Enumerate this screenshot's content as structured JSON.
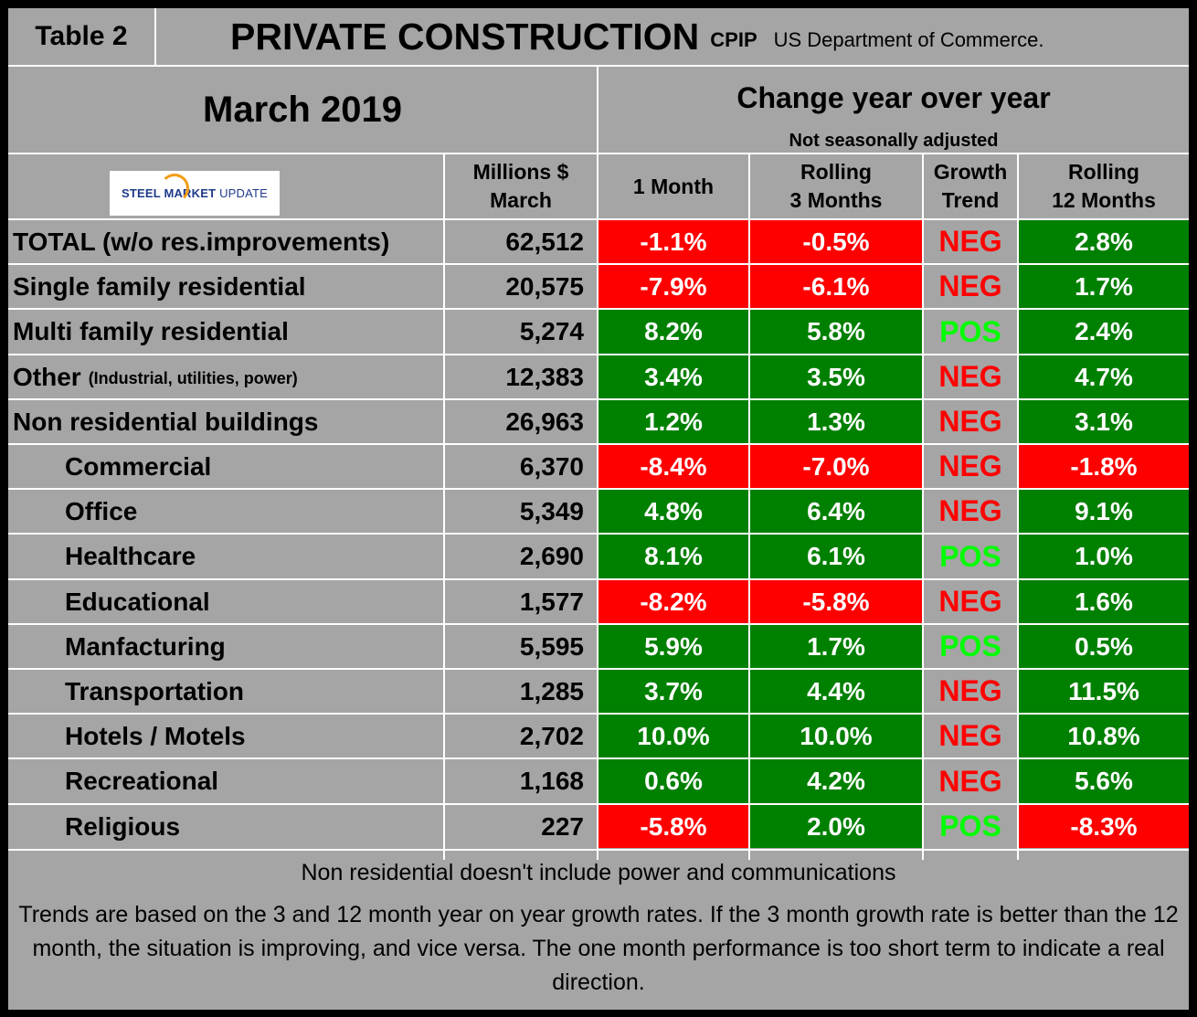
{
  "header": {
    "table_label": "Table 2",
    "title": "PRIVATE CONSTRUCTION",
    "code": "CPIP",
    "source": "US Department of Commerce."
  },
  "period": "March 2019",
  "change_heading": "Change year over year",
  "adjustment_note": "Not seasonally adjusted",
  "logo": {
    "word1": "STEEL",
    "word2": "MARKET",
    "word3": "UPDATE"
  },
  "columns": {
    "millions_line1": "Millions $",
    "millions_line2": "March",
    "one_month": "1 Month",
    "rolling3_line1": "Rolling",
    "rolling3_line2": "3 Months",
    "growth_line1": "Growth",
    "growth_line2": "Trend",
    "rolling12_line1": "Rolling",
    "rolling12_line2": "12 Months"
  },
  "rows": [
    {
      "label": "TOTAL (w/o res.improvements)",
      "sub": "",
      "millions": "62,512",
      "m1": "-1.1%",
      "r3": "-0.5%",
      "trend": "NEG",
      "r12": "2.8%"
    },
    {
      "label": "Single family residential",
      "sub": "",
      "millions": "20,575",
      "m1": "-7.9%",
      "r3": "-6.1%",
      "trend": "NEG",
      "r12": "1.7%"
    },
    {
      "label": "Multi family residential",
      "sub": "",
      "millions": "5,274",
      "m1": "8.2%",
      "r3": "5.8%",
      "trend": "POS",
      "r12": "2.4%"
    },
    {
      "label": "Other",
      "sub": "(Industrial, utilities, power)",
      "millions": "12,383",
      "m1": "3.4%",
      "r3": "3.5%",
      "trend": "NEG",
      "r12": "4.7%"
    },
    {
      "label": "Non residential buildings",
      "sub": "",
      "millions": "26,963",
      "m1": "1.2%",
      "r3": "1.3%",
      "trend": "NEG",
      "r12": "3.1%"
    },
    {
      "label": "Commercial",
      "sub": "",
      "millions": "6,370",
      "m1": "-8.4%",
      "r3": "-7.0%",
      "trend": "NEG",
      "r12": "-1.8%"
    },
    {
      "label": "Office",
      "sub": "",
      "millions": "5,349",
      "m1": "4.8%",
      "r3": "6.4%",
      "trend": "NEG",
      "r12": "9.1%"
    },
    {
      "label": "Healthcare",
      "sub": "",
      "millions": "2,690",
      "m1": "8.1%",
      "r3": "6.1%",
      "trend": "POS",
      "r12": "1.0%"
    },
    {
      "label": "Educational",
      "sub": "",
      "millions": "1,577",
      "m1": "-8.2%",
      "r3": "-5.8%",
      "trend": "NEG",
      "r12": "1.6%"
    },
    {
      "label": "Manfacturing",
      "sub": "",
      "millions": "5,595",
      "m1": "5.9%",
      "r3": "1.7%",
      "trend": "POS",
      "r12": "0.5%"
    },
    {
      "label": "Transportation",
      "sub": "",
      "millions": "1,285",
      "m1": "3.7%",
      "r3": "4.4%",
      "trend": "NEG",
      "r12": "11.5%"
    },
    {
      "label": "Hotels / Motels",
      "sub": "",
      "millions": "2,702",
      "m1": "10.0%",
      "r3": "10.0%",
      "trend": "NEG",
      "r12": "10.8%"
    },
    {
      "label": "Recreational",
      "sub": "",
      "millions": "1,168",
      "m1": "0.6%",
      "r3": "4.2%",
      "trend": "NEG",
      "r12": "5.6%"
    },
    {
      "label": "Religious",
      "sub": "",
      "millions": "227",
      "m1": "-5.8%",
      "r3": "2.0%",
      "trend": "POS",
      "r12": "-8.3%"
    }
  ],
  "footnote1": "Non residential doesn't include power and communications",
  "footnote2": "Trends are based on the 3 and 12 month year on year growth rates. If the 3 month growth rate is better than the 12 month, the situation is improving, and vice versa. The one month performance is too short term to indicate a real direction."
}
